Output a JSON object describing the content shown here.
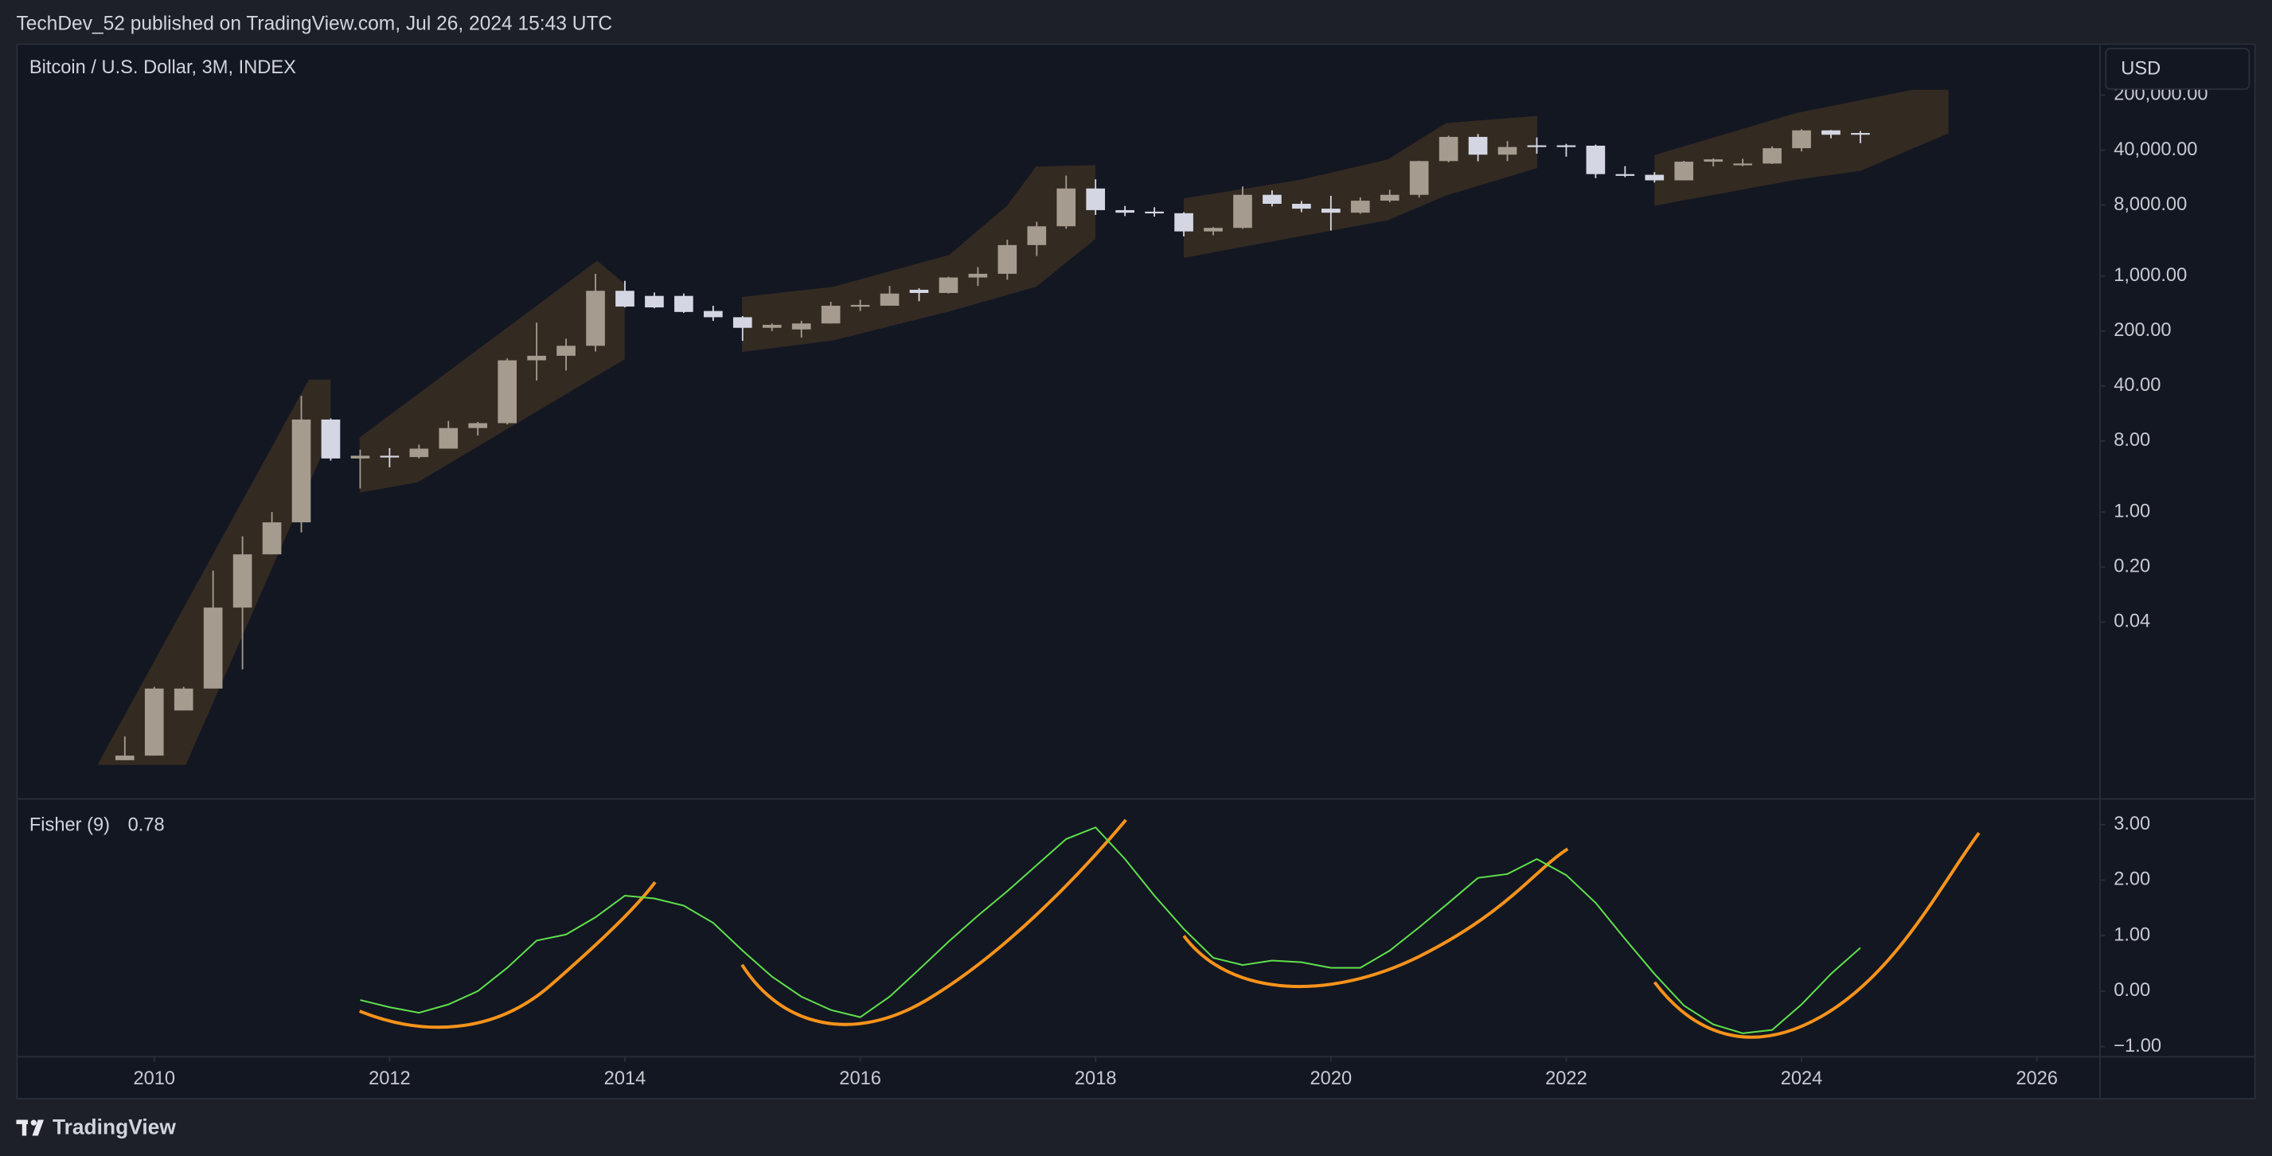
{
  "page": {
    "header": "TechDev_52 published on TradingView.com, Jul 26, 2024 15:43 UTC",
    "currency": "USD",
    "brand": "TradingView"
  },
  "chart_data": [
    {
      "type": "candlestick",
      "title": "Bitcoin / U.S. Dollar, 3M, INDEX",
      "log_scale": true,
      "grid": false,
      "up_color": "#a59b8e",
      "down_color": "#d4d7e3",
      "x": [
        2009.75,
        2010,
        2010.25,
        2010.5,
        2010.75,
        2011,
        2011.25,
        2011.5,
        2011.75,
        2012,
        2012.25,
        2012.5,
        2012.75,
        2013,
        2013.25,
        2013.5,
        2013.75,
        2014,
        2014.25,
        2014.5,
        2014.75,
        2015,
        2015.25,
        2015.5,
        2015.75,
        2016,
        2016.25,
        2016.5,
        2016.75,
        2017,
        2017.25,
        2017.5,
        2017.75,
        2018,
        2018.25,
        2018.5,
        2018.75,
        2019,
        2019.25,
        2019.5,
        2019.75,
        2020,
        2020.25,
        2020.5,
        2020.75,
        2021,
        2021.25,
        2021.5,
        2021.75,
        2022,
        2022.25,
        2022.5,
        2022.75,
        2023,
        2023.25,
        2023.5,
        2023.75,
        2024,
        2024.25,
        2024.5
      ],
      "open": [
        0.0007,
        0.0008,
        0.003,
        0.0057,
        0.061,
        0.29,
        0.74,
        15,
        4.8,
        5.2,
        5,
        6.4,
        11.7,
        13.5,
        85,
        97,
        130,
        650,
        560,
        560,
        360,
        300,
        220,
        210,
        250,
        420,
        420,
        670,
        610,
        960,
        1070,
        2480,
        4300,
        13000,
        6900,
        6600,
        6300,
        3700,
        4100,
        10800,
        8300,
        7200,
        6400,
        9100,
        10800,
        29000,
        58900,
        35000,
        46000,
        46000,
        45500,
        19800,
        19400,
        16500,
        28500,
        26500,
        27000,
        42300,
        71300,
        66000
      ],
      "high": [
        0.0014,
        0.006,
        0.006,
        0.18,
        0.49,
        1.0,
        30,
        15.5,
        6.2,
        6.5,
        7.2,
        14.4,
        14,
        90,
        256,
        160,
        1070,
        870,
        620,
        600,
        420,
        310,
        250,
        270,
        470,
        500,
        750,
        700,
        980,
        1300,
        2900,
        4900,
        19000,
        17000,
        7800,
        7500,
        6500,
        4200,
        13800,
        12300,
        9000,
        10500,
        10000,
        12500,
        29300,
        61000,
        64000,
        52000,
        58000,
        48000,
        47000,
        25000,
        21000,
        29200,
        31400,
        31000,
        44700,
        73800,
        72000,
        70000
      ],
      "low": [
        0.0007,
        0.0008,
        0.003,
        0.0057,
        0.01,
        0.29,
        0.55,
        4.5,
        2,
        3.7,
        4.8,
        6.4,
        9.4,
        13,
        47,
        63,
        110,
        400,
        390,
        340,
        270,
        150,
        200,
        165,
        250,
        360,
        420,
        480,
        600,
        750,
        900,
        1800,
        4000,
        6000,
        5800,
        5700,
        3200,
        3300,
        4000,
        7700,
        6500,
        3800,
        6200,
        8700,
        10000,
        28000,
        28800,
        29000,
        36000,
        33000,
        17600,
        18100,
        15500,
        16500,
        24800,
        25000,
        26600,
        38500,
        56500,
        49000
      ],
      "close": [
        0.0008,
        0.0057,
        0.0057,
        0.061,
        0.29,
        0.74,
        15,
        4.8,
        5.2,
        5.0,
        6.4,
        11.7,
        13.5,
        85,
        97,
        130,
        650,
        410,
        400,
        350,
        300,
        220,
        240,
        250,
        420,
        430,
        600,
        610,
        960,
        1070,
        2480,
        4300,
        13000,
        6900,
        6400,
        6300,
        3700,
        4100,
        10800,
        8300,
        7200,
        6400,
        9100,
        10800,
        29000,
        58900,
        35000,
        43800,
        45000,
        45500,
        19800,
        19400,
        16500,
        28500,
        30500,
        27000,
        42300,
        71300,
        62700,
        64000
      ],
      "xlim": [
        2008.84,
        2026.53
      ],
      "xticks": [
        2010,
        2012,
        2014,
        2016,
        2018,
        2020,
        2022,
        2024,
        2026
      ],
      "ylim": [
        0.00023,
        870000
      ],
      "yticks": [
        {
          "value": 200000,
          "label": "200,000.00"
        },
        {
          "value": 40000,
          "label": "40,000.00"
        },
        {
          "value": 8000,
          "label": "8,000.00"
        },
        {
          "value": 1000,
          "label": "1,000.00"
        },
        {
          "value": 200,
          "label": "200.00"
        },
        {
          "value": 40,
          "label": "40.00"
        },
        {
          "value": 8,
          "label": "8.00"
        },
        {
          "value": 1,
          "label": "1.00"
        },
        {
          "value": 0.2,
          "label": "0.20"
        },
        {
          "value": 0.04,
          "label": "0.04"
        }
      ]
    },
    {
      "type": "line",
      "grid": false,
      "x": [
        2011.75,
        2012,
        2012.25,
        2012.5,
        2012.75,
        2013,
        2013.25,
        2013.5,
        2013.75,
        2014,
        2014.25,
        2014.5,
        2014.75,
        2015,
        2015.25,
        2015.5,
        2015.75,
        2016,
        2016.25,
        2016.5,
        2016.75,
        2017,
        2017.25,
        2017.5,
        2017.75,
        2018,
        2018.25,
        2018.5,
        2018.75,
        2019,
        2019.25,
        2019.5,
        2019.75,
        2020,
        2020.25,
        2020.5,
        2020.75,
        2021,
        2021.25,
        2021.5,
        2021.75,
        2022,
        2022.25,
        2022.5,
        2022.75,
        2023,
        2023.25,
        2023.5,
        2023.75,
        2024,
        2024.25,
        2024.5
      ],
      "series": [
        {
          "name": "Fisher (9)",
          "color": "#5fe04b",
          "values": [
            -0.16,
            -0.29,
            -0.39,
            -0.24,
            0.0,
            0.42,
            0.91,
            1.02,
            1.33,
            1.72,
            1.67,
            1.54,
            1.23,
            0.73,
            0.26,
            -0.1,
            -0.34,
            -0.47,
            -0.1,
            0.39,
            0.89,
            1.36,
            1.8,
            2.27,
            2.74,
            2.95,
            2.38,
            1.72,
            1.12,
            0.6,
            0.47,
            0.55,
            0.52,
            0.42,
            0.42,
            0.73,
            1.15,
            1.59,
            2.04,
            2.11,
            2.38,
            2.09,
            1.59,
            0.94,
            0.31,
            -0.26,
            -0.6,
            -0.76,
            -0.7,
            -0.24,
            0.31,
            0.78
          ]
        }
      ],
      "xlim": [
        2008.84,
        2026.53
      ],
      "ylim": [
        -1.17,
        3.45
      ],
      "yticks": [
        {
          "value": 3,
          "label": "3.00"
        },
        {
          "value": 2,
          "label": "2.00"
        },
        {
          "value": 1,
          "label": "1.00"
        },
        {
          "value": 0,
          "label": "0.00"
        },
        {
          "value": -1,
          "label": "−1.00"
        }
      ]
    }
  ]
}
